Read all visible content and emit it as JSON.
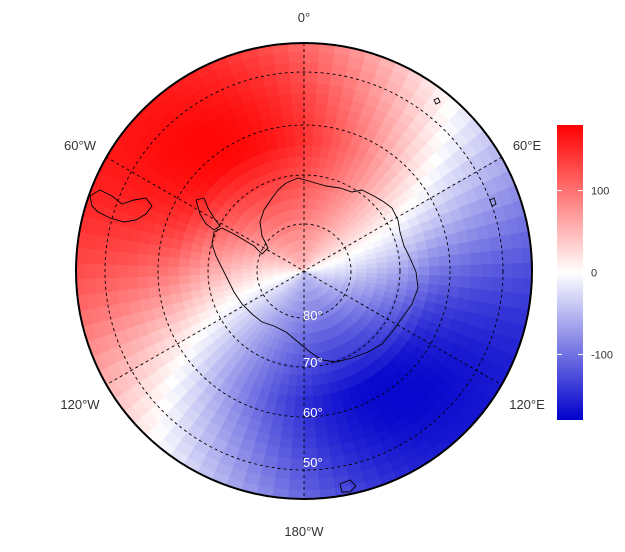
{
  "map": {
    "projection": "south-polar-stereographic",
    "colorbar": {
      "min": -180,
      "max": 180,
      "ticks": [
        "100",
        "0",
        "-100"
      ],
      "tick_values": [
        100,
        0,
        -100
      ],
      "colors": {
        "high": "#ff0000",
        "mid": "#ffffff",
        "low": "#0000cc"
      }
    },
    "lon_labels": {
      "top": "0°",
      "upper_left": "60°W",
      "upper_right": "60°E",
      "lower_left": "120°W",
      "lower_right": "120°E",
      "bottom": "180°W"
    },
    "lat_labels": [
      "80°",
      "70°",
      "60°",
      "50°"
    ],
    "field": {
      "description_values": "longitude-dependent wave field; max near 30°W, min near 150°E",
      "max_value": 180,
      "min_value": -180
    }
  }
}
